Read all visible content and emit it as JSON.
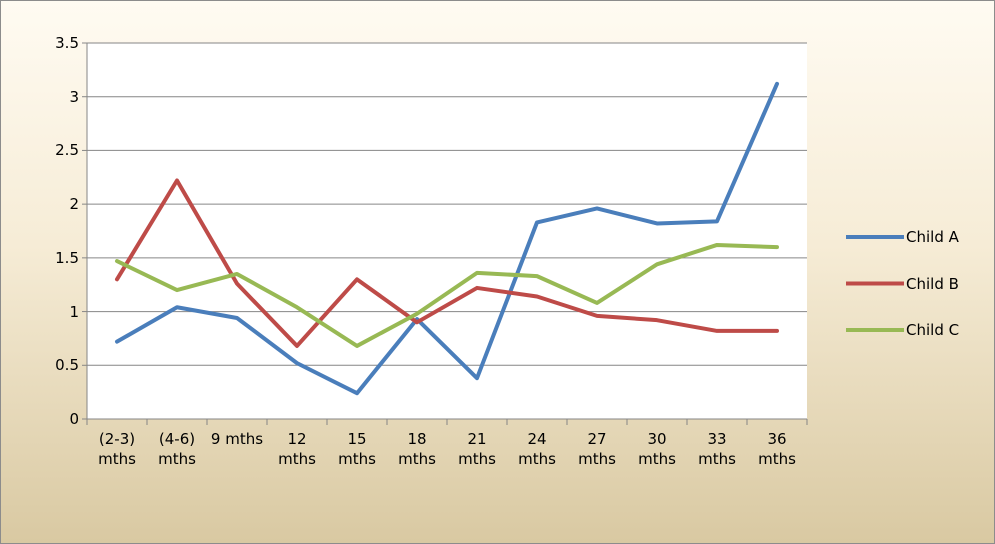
{
  "chart_data": {
    "type": "line",
    "categories": [
      "(2-3) mths",
      "(4-6) mths",
      "9 mths",
      "12 mths",
      "15 mths",
      "18 mths",
      "21 mths",
      "24 mths",
      "27 mths",
      "30 mths",
      "33 mths",
      "36 mths"
    ],
    "series": [
      {
        "name": "Child A",
        "color": "#4a7ebb",
        "values": [
          0.72,
          1.04,
          0.94,
          0.52,
          0.24,
          0.93,
          0.38,
          1.83,
          1.96,
          1.82,
          1.84,
          3.12
        ]
      },
      {
        "name": "Child B",
        "color": "#be4b48",
        "values": [
          1.3,
          2.22,
          1.26,
          0.68,
          1.3,
          0.9,
          1.22,
          1.14,
          0.96,
          0.92,
          0.82,
          0.82
        ]
      },
      {
        "name": "Child C",
        "color": "#98b954",
        "values": [
          1.47,
          1.2,
          1.35,
          1.04,
          0.68,
          0.98,
          1.36,
          1.33,
          1.08,
          1.44,
          1.62,
          1.6
        ]
      }
    ],
    "ylim": [
      0,
      3.5
    ],
    "yticks": [
      0,
      0.5,
      1,
      1.5,
      2,
      2.5,
      3,
      3.5
    ],
    "grid": true,
    "legend": "right"
  }
}
